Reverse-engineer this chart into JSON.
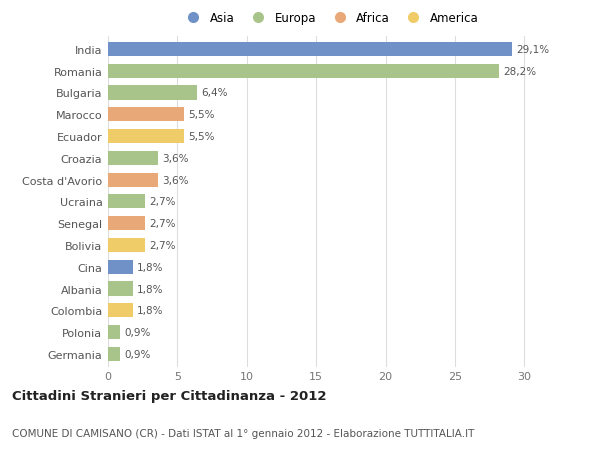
{
  "countries": [
    "India",
    "Romania",
    "Bulgaria",
    "Marocco",
    "Ecuador",
    "Croazia",
    "Costa d'Avorio",
    "Ucraina",
    "Senegal",
    "Bolivia",
    "Cina",
    "Albania",
    "Colombia",
    "Polonia",
    "Germania"
  ],
  "values": [
    29.1,
    28.2,
    6.4,
    5.5,
    5.5,
    3.6,
    3.6,
    2.7,
    2.7,
    2.7,
    1.8,
    1.8,
    1.8,
    0.9,
    0.9
  ],
  "labels": [
    "29,1%",
    "28,2%",
    "6,4%",
    "5,5%",
    "5,5%",
    "3,6%",
    "3,6%",
    "2,7%",
    "2,7%",
    "2,7%",
    "1,8%",
    "1,8%",
    "1,8%",
    "0,9%",
    "0,9%"
  ],
  "continents": [
    "Asia",
    "Europa",
    "Europa",
    "Africa",
    "America",
    "Europa",
    "Africa",
    "Europa",
    "Africa",
    "America",
    "Asia",
    "Europa",
    "America",
    "Europa",
    "Europa"
  ],
  "continent_colors": {
    "Asia": "#7090c8",
    "Europa": "#a8c48a",
    "Africa": "#e8a878",
    "America": "#f0cc68"
  },
  "legend_order": [
    "Asia",
    "Europa",
    "Africa",
    "America"
  ],
  "title": "Cittadini Stranieri per Cittadinanza - 2012",
  "subtitle": "COMUNE DI CAMISANO (CR) - Dati ISTAT al 1° gennaio 2012 - Elaborazione TUTTITALIA.IT",
  "xlim": [
    0,
    32
  ],
  "xticks": [
    0,
    5,
    10,
    15,
    20,
    25,
    30
  ],
  "background_color": "#ffffff",
  "grid_color": "#dddddd"
}
